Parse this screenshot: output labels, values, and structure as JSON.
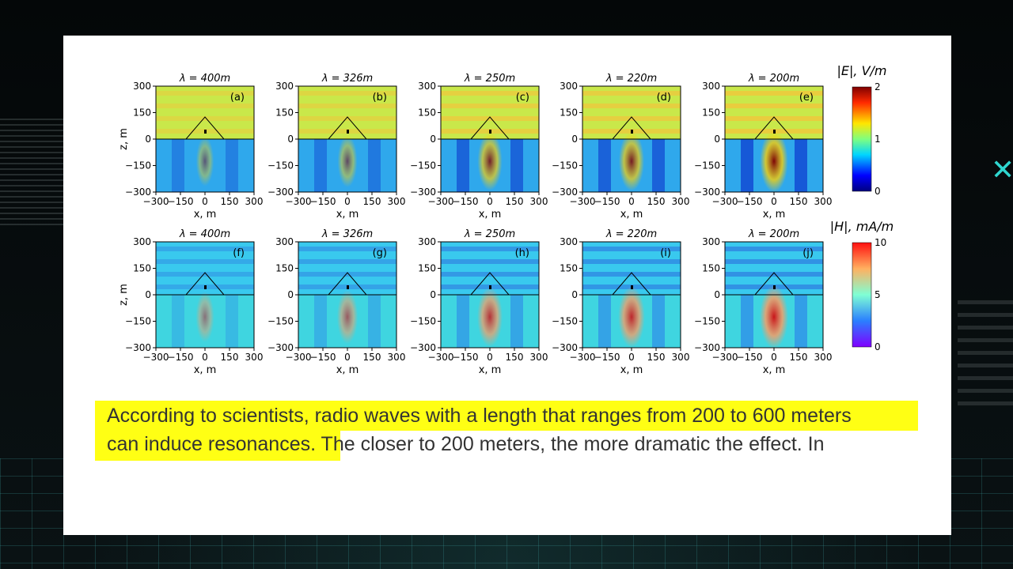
{
  "figure": {
    "rows": [
      {
        "field": "E",
        "panels": [
          {
            "title": "λ = 400m",
            "letter": "(a)",
            "intensity": 0.15
          },
          {
            "title": "λ = 326m",
            "letter": "(b)",
            "intensity": 0.3
          },
          {
            "title": "λ = 250m",
            "letter": "(c)",
            "intensity": 0.7
          },
          {
            "title": "λ = 220m",
            "letter": "(d)",
            "intensity": 0.75
          },
          {
            "title": "λ = 200m",
            "letter": "(e)",
            "intensity": 0.95
          }
        ]
      },
      {
        "field": "H",
        "panels": [
          {
            "title": "λ = 400m",
            "letter": "(f)",
            "intensity": 0.2
          },
          {
            "title": "λ = 326m",
            "letter": "(g)",
            "intensity": 0.4
          },
          {
            "title": "λ = 250m",
            "letter": "(h)",
            "intensity": 0.75
          },
          {
            "title": "λ = 220m",
            "letter": "(i)",
            "intensity": 0.85
          },
          {
            "title": "λ = 200m",
            "letter": "(j)",
            "intensity": 1.0
          }
        ]
      }
    ],
    "ylabel": "z, m",
    "xlabel": "x, m",
    "yticks": [
      "300",
      "150",
      "0",
      "−150",
      "−300"
    ],
    "xticks": [
      "−300",
      "−150",
      "0",
      "150",
      "300"
    ],
    "colorbars": [
      {
        "label": "|E|, V/m",
        "ticks": [
          "2",
          "1",
          "0"
        ]
      },
      {
        "label": "|H|, mA/m",
        "ticks": [
          "10",
          "5",
          "0"
        ]
      }
    ]
  },
  "caption": {
    "line1": "According to scientists, radio waves with a length that ranges from 200 to 600 meters",
    "line2_highlighted": "can induce resonances.",
    "line2_rest": " The closer to 200 meters, the more dramatic the effect. In"
  },
  "colors": {
    "highlight": "#ffff14",
    "text": "#333333"
  }
}
